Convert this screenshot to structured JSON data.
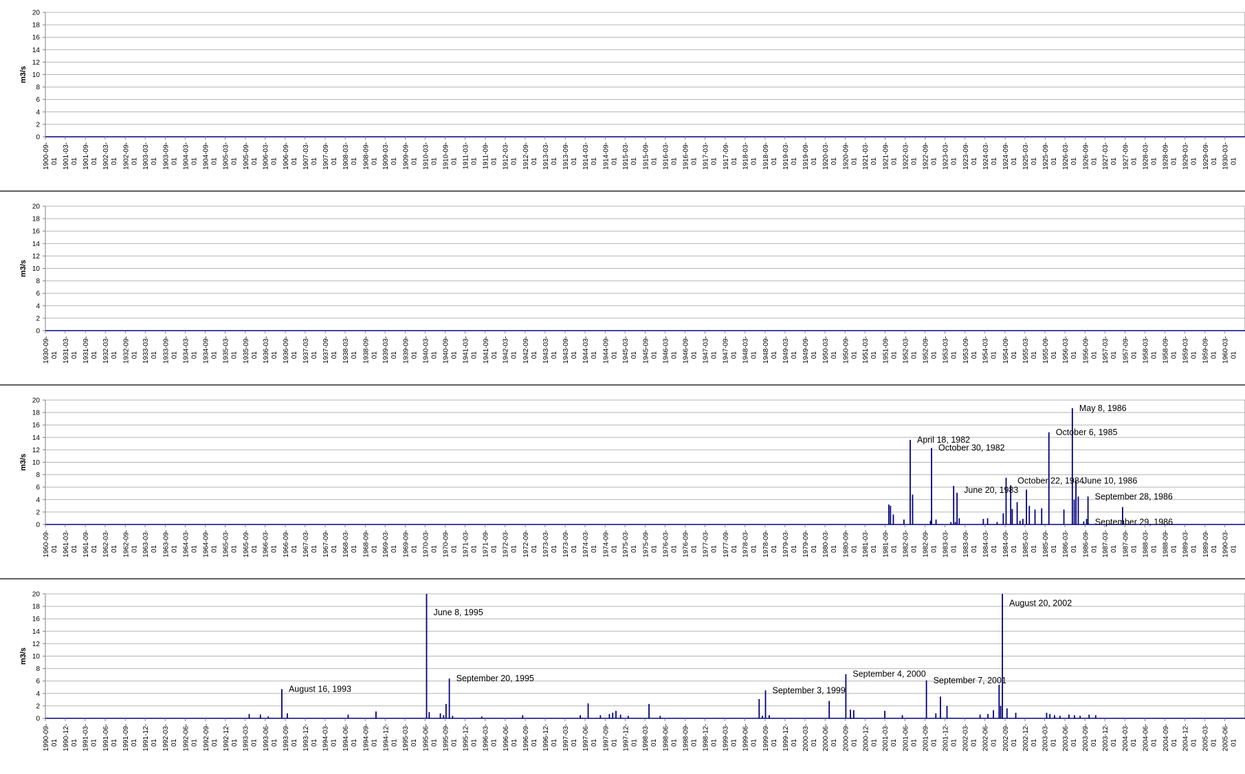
{
  "colors": {
    "series": "#000080",
    "grid": "#b4b4b4",
    "axis": "#808080",
    "separator": "#000000"
  },
  "chart_data": [
    {
      "type": "bar",
      "ylabel": "m3/s",
      "ylim": [
        0,
        20
      ],
      "yticks": [
        0,
        2,
        4,
        6,
        8,
        10,
        12,
        14,
        16,
        18,
        20
      ],
      "xlim": [
        "1900-09-01",
        "1930-09-01"
      ],
      "xticks": [
        "1900-09-01",
        "1901-03-01",
        "1901-09-01",
        "1902-03-01",
        "1902-09-01",
        "1903-03-01",
        "1903-09-01",
        "1904-03-01",
        "1904-09-01",
        "1905-03-01",
        "1905-09-01",
        "1906-03-01",
        "1906-09-01",
        "1907-03-01",
        "1907-09-01",
        "1908-03-01",
        "1908-09-01",
        "1909-03-01",
        "1909-09-01",
        "1910-03-01",
        "1910-09-01",
        "1911-03-01",
        "1911-09-01",
        "1912-03-01",
        "1912-09-01",
        "1913-03-01",
        "1913-09-01",
        "1914-03-01",
        "1914-09-01",
        "1915-03-01",
        "1915-09-01",
        "1916-03-01",
        "1916-09-01",
        "1917-03-01",
        "1917-09-01",
        "1918-03-01",
        "1918-09-01",
        "1919-03-01",
        "1919-09-01",
        "1920-03-01",
        "1920-09-01",
        "1921-03-01",
        "1921-09-01",
        "1922-03-01",
        "1922-09-01",
        "1923-03-01",
        "1923-09-01",
        "1924-03-01",
        "1924-09-01",
        "1925-03-01",
        "1925-09-01",
        "1926-03-01",
        "1926-09-01",
        "1927-03-01",
        "1927-09-01",
        "1928-03-01",
        "1928-09-01",
        "1929-03-01",
        "1929-09-01",
        "1930-03-01"
      ],
      "bars": [],
      "annotations": []
    },
    {
      "type": "bar",
      "ylabel": "m3/s",
      "ylim": [
        0,
        20
      ],
      "yticks": [
        0,
        2,
        4,
        6,
        8,
        10,
        12,
        14,
        16,
        18,
        20
      ],
      "xlim": [
        "1930-09-01",
        "1960-09-01"
      ],
      "xticks": [
        "1930-09-01",
        "1931-03-01",
        "1931-09-01",
        "1932-03-01",
        "1932-09-01",
        "1933-03-01",
        "1933-09-01",
        "1934-03-01",
        "1934-09-01",
        "1935-03-01",
        "1935-09-01",
        "1936-03-01",
        "1936-09-01",
        "1937-03-01",
        "1937-09-01",
        "1938-03-01",
        "1938-09-01",
        "1939-03-01",
        "1939-09-01",
        "1940-03-01",
        "1940-09-01",
        "1941-03-01",
        "1941-09-01",
        "1942-03-01",
        "1942-09-01",
        "1943-03-01",
        "1943-09-01",
        "1944-03-01",
        "1944-09-01",
        "1945-03-01",
        "1945-09-01",
        "1946-03-01",
        "1946-09-01",
        "1947-03-01",
        "1947-09-01",
        "1948-03-01",
        "1948-09-01",
        "1949-03-01",
        "1949-09-01",
        "1950-03-01",
        "1950-09-01",
        "1951-03-01",
        "1951-09-01",
        "1952-03-01",
        "1952-09-01",
        "1953-03-01",
        "1953-09-01",
        "1954-03-01",
        "1954-09-01",
        "1955-03-01",
        "1955-09-01",
        "1956-03-01",
        "1956-09-01",
        "1957-03-01",
        "1957-09-01",
        "1958-03-01",
        "1958-09-01",
        "1959-03-01",
        "1959-09-01",
        "1960-03-01"
      ],
      "bars": [],
      "annotations": []
    },
    {
      "type": "bar",
      "ylabel": "m3/s",
      "ylim": [
        0,
        20
      ],
      "yticks": [
        0,
        2,
        4,
        6,
        8,
        10,
        12,
        14,
        16,
        18,
        20
      ],
      "xlim": [
        "1960-09-01",
        "1990-09-01"
      ],
      "xticks": [
        "1960-09-01",
        "1961-03-01",
        "1961-09-01",
        "1962-03-01",
        "1962-09-01",
        "1963-03-01",
        "1963-09-01",
        "1964-03-01",
        "1964-09-01",
        "1965-03-01",
        "1965-09-01",
        "1966-03-01",
        "1966-09-01",
        "1967-03-01",
        "1967-09-01",
        "1968-03-01",
        "1968-09-01",
        "1969-03-01",
        "1969-09-01",
        "1970-03-01",
        "1970-09-01",
        "1971-03-01",
        "1971-09-01",
        "1972-03-01",
        "1972-09-01",
        "1973-03-01",
        "1973-09-01",
        "1974-03-01",
        "1974-09-01",
        "1975-03-01",
        "1975-09-01",
        "1976-03-01",
        "1976-09-01",
        "1977-03-01",
        "1977-09-01",
        "1978-03-01",
        "1978-09-01",
        "1979-03-01",
        "1979-09-01",
        "1980-03-01",
        "1980-09-01",
        "1981-03-01",
        "1981-09-01",
        "1982-03-01",
        "1982-09-01",
        "1983-03-01",
        "1983-09-01",
        "1984-03-01",
        "1984-09-01",
        "1985-03-01",
        "1985-09-01",
        "1986-03-01",
        "1986-09-01",
        "1987-03-01",
        "1987-09-01",
        "1988-03-01",
        "1988-09-01",
        "1989-03-01",
        "1989-09-01",
        "1990-03-01"
      ],
      "bars": [
        {
          "x": "1981-10-05",
          "y": 3.2
        },
        {
          "x": "1981-10-20",
          "y": 3.0
        },
        {
          "x": "1981-11-15",
          "y": 1.6
        },
        {
          "x": "1982-02-20",
          "y": 0.8
        },
        {
          "x": "1982-04-18",
          "y": 13.6
        },
        {
          "x": "1982-05-10",
          "y": 4.8
        },
        {
          "x": "1982-10-20",
          "y": 0.6
        },
        {
          "x": "1982-10-30",
          "y": 12.3
        },
        {
          "x": "1982-12-10",
          "y": 0.8
        },
        {
          "x": "1983-04-25",
          "y": 0.4
        },
        {
          "x": "1983-05-20",
          "y": 6.2
        },
        {
          "x": "1983-06-05",
          "y": 0.4
        },
        {
          "x": "1983-06-20",
          "y": 5.1
        },
        {
          "x": "1983-07-10",
          "y": 1.0
        },
        {
          "x": "1984-02-15",
          "y": 0.9
        },
        {
          "x": "1984-03-25",
          "y": 1.0
        },
        {
          "x": "1984-06-20",
          "y": 0.4
        },
        {
          "x": "1984-08-15",
          "y": 1.8
        },
        {
          "x": "1984-09-10",
          "y": 7.5
        },
        {
          "x": "1984-10-22",
          "y": 6.3
        },
        {
          "x": "1984-11-05",
          "y": 2.5
        },
        {
          "x": "1984-12-20",
          "y": 3.6
        },
        {
          "x": "1985-01-15",
          "y": 0.6
        },
        {
          "x": "1985-02-10",
          "y": 0.9
        },
        {
          "x": "1985-03-15",
          "y": 5.6
        },
        {
          "x": "1985-04-10",
          "y": 3.0
        },
        {
          "x": "1985-06-01",
          "y": 2.4
        },
        {
          "x": "1985-08-01",
          "y": 2.6
        },
        {
          "x": "1985-10-06",
          "y": 14.8
        },
        {
          "x": "1986-02-20",
          "y": 2.4
        },
        {
          "x": "1986-05-08",
          "y": 18.7
        },
        {
          "x": "1986-05-25",
          "y": 4.0
        },
        {
          "x": "1986-06-10",
          "y": 7.0
        },
        {
          "x": "1986-07-01",
          "y": 4.5
        },
        {
          "x": "1986-08-20",
          "y": 0.5
        },
        {
          "x": "1986-09-15",
          "y": 0.9
        },
        {
          "x": "1986-09-28",
          "y": 4.5
        },
        {
          "x": "1986-09-29",
          "y": 0.3
        },
        {
          "x": "1987-08-10",
          "y": 2.8
        }
      ],
      "annotations": [
        {
          "text": "April 18, 1982",
          "x": "1982-04-18",
          "y": 13.6
        },
        {
          "text": "October 30, 1982",
          "x": "1982-10-30",
          "y": 12.3
        },
        {
          "text": "June 20, 1983",
          "x": "1983-06-20",
          "y": 5.5
        },
        {
          "text": "October 22, 1984",
          "x": "1984-10-22",
          "y": 7.0
        },
        {
          "text": "May 8, 1986",
          "x": "1986-05-08",
          "y": 18.7
        },
        {
          "text": "October 6, 1985",
          "x": "1985-10-06",
          "y": 14.8
        },
        {
          "text": "June 10, 1986",
          "x": "1986-06-10",
          "y": 7.0
        },
        {
          "text": "September 28, 1986",
          "x": "1986-09-28",
          "y": 4.5
        },
        {
          "text": "September 29, 1986",
          "x": "1986-09-29",
          "y": 0.4
        }
      ]
    },
    {
      "type": "bar",
      "ylabel": "m3/s",
      "ylim": [
        0,
        20
      ],
      "yticks": [
        0,
        2,
        4,
        6,
        8,
        10,
        12,
        14,
        16,
        18,
        20
      ],
      "xlim": [
        "1990-09-01",
        "2005-09-01"
      ],
      "xticks": [
        "1990-09-01",
        "1990-12-01",
        "1991-03-01",
        "1991-06-01",
        "1991-09-01",
        "1991-12-01",
        "1992-03-01",
        "1992-06-01",
        "1992-09-01",
        "1992-12-01",
        "1993-03-01",
        "1993-06-01",
        "1993-09-01",
        "1993-12-01",
        "1994-03-01",
        "1994-06-01",
        "1994-09-01",
        "1994-12-01",
        "1995-03-01",
        "1995-06-01",
        "1995-09-01",
        "1995-12-01",
        "1996-03-01",
        "1996-06-01",
        "1996-09-01",
        "1996-12-01",
        "1997-03-01",
        "1997-06-01",
        "1997-09-01",
        "1997-12-01",
        "1998-03-01",
        "1998-06-01",
        "1998-09-01",
        "1998-12-01",
        "1999-03-01",
        "1999-06-01",
        "1999-09-01",
        "1999-12-01",
        "2000-03-01",
        "2000-06-01",
        "2000-09-01",
        "2000-12-01",
        "2001-03-01",
        "2001-06-01",
        "2001-09-01",
        "2001-12-01",
        "2002-03-01",
        "2002-06-01",
        "2002-09-01",
        "2002-12-01",
        "2003-03-01",
        "2003-06-01",
        "2003-09-01",
        "2003-12-01",
        "2004-03-01",
        "2004-06-01",
        "2004-09-01",
        "2004-12-01",
        "2005-03-01",
        "2005-06-01"
      ],
      "bars": [
        {
          "x": "1993-03-20",
          "y": 0.7
        },
        {
          "x": "1993-05-10",
          "y": 0.6
        },
        {
          "x": "1993-06-15",
          "y": 0.3
        },
        {
          "x": "1993-08-16",
          "y": 4.7
        },
        {
          "x": "1993-09-10",
          "y": 0.8
        },
        {
          "x": "1994-06-15",
          "y": 0.6
        },
        {
          "x": "1994-10-20",
          "y": 1.1
        },
        {
          "x": "1995-06-08",
          "y": 20.0
        },
        {
          "x": "1995-06-20",
          "y": 1.0
        },
        {
          "x": "1995-08-10",
          "y": 0.8
        },
        {
          "x": "1995-08-25",
          "y": 0.5
        },
        {
          "x": "1995-09-05",
          "y": 2.3
        },
        {
          "x": "1995-09-20",
          "y": 6.4
        },
        {
          "x": "1995-10-05",
          "y": 0.4
        },
        {
          "x": "1996-02-15",
          "y": 0.3
        },
        {
          "x": "1996-08-20",
          "y": 0.5
        },
        {
          "x": "1997-05-10",
          "y": 0.5
        },
        {
          "x": "1997-06-15",
          "y": 2.4
        },
        {
          "x": "1997-08-10",
          "y": 0.5
        },
        {
          "x": "1997-09-20",
          "y": 0.7
        },
        {
          "x": "1997-10-05",
          "y": 0.9
        },
        {
          "x": "1997-10-20",
          "y": 1.2
        },
        {
          "x": "1997-11-10",
          "y": 0.6
        },
        {
          "x": "1997-12-15",
          "y": 0.4
        },
        {
          "x": "1998-03-20",
          "y": 2.3
        },
        {
          "x": "1998-05-10",
          "y": 0.4
        },
        {
          "x": "1999-08-05",
          "y": 3.1
        },
        {
          "x": "1999-08-20",
          "y": 0.4
        },
        {
          "x": "1999-09-03",
          "y": 4.5
        },
        {
          "x": "1999-09-20",
          "y": 0.5
        },
        {
          "x": "2000-06-20",
          "y": 2.8
        },
        {
          "x": "2000-09-04",
          "y": 7.1
        },
        {
          "x": "2000-09-25",
          "y": 1.4
        },
        {
          "x": "2000-10-10",
          "y": 1.3
        },
        {
          "x": "2001-03-01",
          "y": 1.2
        },
        {
          "x": "2001-05-20",
          "y": 0.5
        },
        {
          "x": "2001-09-07",
          "y": 6.1
        },
        {
          "x": "2001-10-20",
          "y": 0.8
        },
        {
          "x": "2001-11-10",
          "y": 3.5
        },
        {
          "x": "2001-12-10",
          "y": 2.0
        },
        {
          "x": "2002-05-10",
          "y": 0.6
        },
        {
          "x": "2002-06-15",
          "y": 0.7
        },
        {
          "x": "2002-07-10",
          "y": 1.3
        },
        {
          "x": "2002-08-05",
          "y": 5.4
        },
        {
          "x": "2002-08-12",
          "y": 2.0
        },
        {
          "x": "2002-08-20",
          "y": 20.0
        },
        {
          "x": "2002-09-10",
          "y": 1.6
        },
        {
          "x": "2002-10-20",
          "y": 0.9
        },
        {
          "x": "2003-03-10",
          "y": 0.9
        },
        {
          "x": "2003-03-25",
          "y": 0.7
        },
        {
          "x": "2003-04-15",
          "y": 0.5
        },
        {
          "x": "2003-05-10",
          "y": 0.4
        },
        {
          "x": "2003-06-20",
          "y": 0.6
        },
        {
          "x": "2003-07-15",
          "y": 0.5
        },
        {
          "x": "2003-08-10",
          "y": 0.4
        },
        {
          "x": "2003-09-20",
          "y": 0.6
        },
        {
          "x": "2003-10-20",
          "y": 0.5
        }
      ],
      "annotations": [
        {
          "text": "June 8, 1995",
          "x": "1995-06-08",
          "y": 17.0
        },
        {
          "text": "August 16, 1993",
          "x": "1993-08-16",
          "y": 4.7
        },
        {
          "text": "September 20, 1995",
          "x": "1995-09-20",
          "y": 6.4
        },
        {
          "text": "September 3, 1999",
          "x": "1999-09-03",
          "y": 4.5
        },
        {
          "text": "September 4, 2000",
          "x": "2000-09-04",
          "y": 7.1
        },
        {
          "text": "September 7, 2001",
          "x": "2001-09-07",
          "y": 6.1
        },
        {
          "text": "August 20, 2002",
          "x": "2002-08-20",
          "y": 18.5
        }
      ]
    }
  ]
}
